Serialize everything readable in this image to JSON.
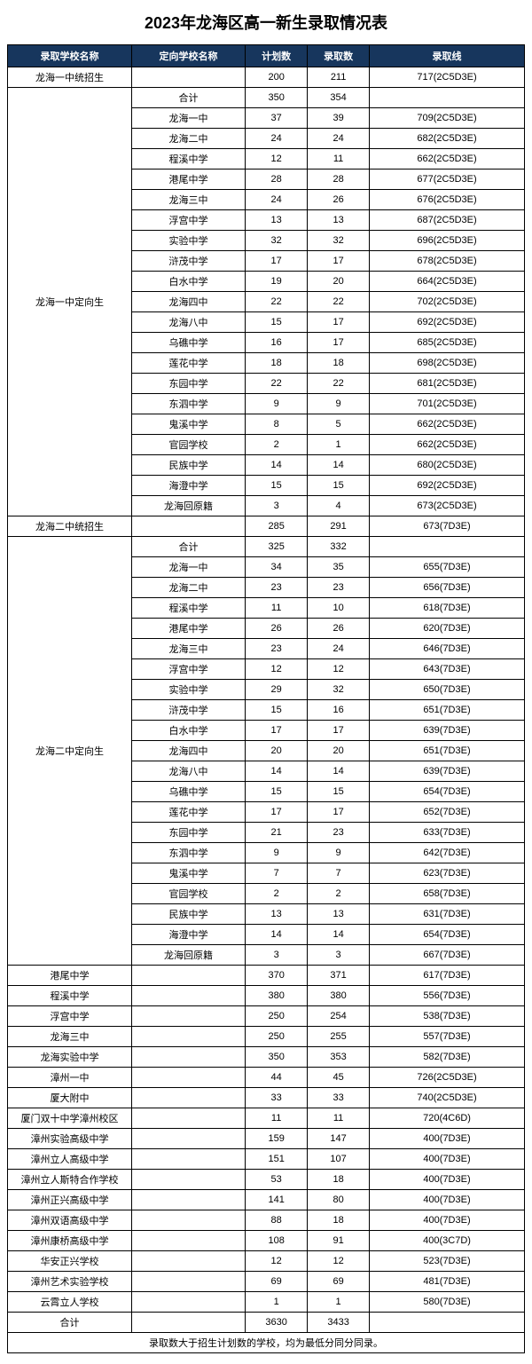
{
  "title": "2023年龙海区高一新生录取情况表",
  "headers": {
    "col1": "录取学校名称",
    "col2": "定向学校名称",
    "col3": "计划数",
    "col4": "录取数",
    "col5": "录取线"
  },
  "sections": [
    {
      "schoolName": "龙海一中统招生",
      "rowspan": 1,
      "rows": [
        {
          "target": "",
          "plan": "200",
          "admit": "211",
          "score": "717(2C5D3E)"
        }
      ]
    },
    {
      "schoolName": "龙海一中定向生",
      "rowspan": 21,
      "rows": [
        {
          "target": "合计",
          "plan": "350",
          "admit": "354",
          "score": ""
        },
        {
          "target": "龙海一中",
          "plan": "37",
          "admit": "39",
          "score": "709(2C5D3E)"
        },
        {
          "target": "龙海二中",
          "plan": "24",
          "admit": "24",
          "score": "682(2C5D3E)"
        },
        {
          "target": "程溪中学",
          "plan": "12",
          "admit": "11",
          "score": "662(2C5D3E)"
        },
        {
          "target": "港尾中学",
          "plan": "28",
          "admit": "28",
          "score": "677(2C5D3E)"
        },
        {
          "target": "龙海三中",
          "plan": "24",
          "admit": "26",
          "score": "676(2C5D3E)"
        },
        {
          "target": "浮宫中学",
          "plan": "13",
          "admit": "13",
          "score": "687(2C5D3E)"
        },
        {
          "target": "实验中学",
          "plan": "32",
          "admit": "32",
          "score": "696(2C5D3E)"
        },
        {
          "target": "浒茂中学",
          "plan": "17",
          "admit": "17",
          "score": "678(2C5D3E)"
        },
        {
          "target": "白水中学",
          "plan": "19",
          "admit": "20",
          "score": "664(2C5D3E)"
        },
        {
          "target": "龙海四中",
          "plan": "22",
          "admit": "22",
          "score": "702(2C5D3E)"
        },
        {
          "target": "龙海八中",
          "plan": "15",
          "admit": "17",
          "score": "692(2C5D3E)"
        },
        {
          "target": "乌礁中学",
          "plan": "16",
          "admit": "17",
          "score": "685(2C5D3E)"
        },
        {
          "target": "莲花中学",
          "plan": "18",
          "admit": "18",
          "score": "698(2C5D3E)"
        },
        {
          "target": "东园中学",
          "plan": "22",
          "admit": "22",
          "score": "681(2C5D3E)"
        },
        {
          "target": "东泗中学",
          "plan": "9",
          "admit": "9",
          "score": "701(2C5D3E)"
        },
        {
          "target": "鬼溪中学",
          "plan": "8",
          "admit": "5",
          "score": "662(2C5D3E)"
        },
        {
          "target": "官园学校",
          "plan": "2",
          "admit": "1",
          "score": "662(2C5D3E)"
        },
        {
          "target": "民族中学",
          "plan": "14",
          "admit": "14",
          "score": "680(2C5D3E)"
        },
        {
          "target": "海澄中学",
          "plan": "15",
          "admit": "15",
          "score": "692(2C5D3E)"
        },
        {
          "target": "龙海回原籍",
          "plan": "3",
          "admit": "4",
          "score": "673(2C5D3E)"
        }
      ]
    },
    {
      "schoolName": "龙海二中统招生",
      "rowspan": 1,
      "rows": [
        {
          "target": "",
          "plan": "285",
          "admit": "291",
          "score": "673(7D3E)"
        }
      ]
    },
    {
      "schoolName": "龙海二中定向生",
      "rowspan": 21,
      "rows": [
        {
          "target": "合计",
          "plan": "325",
          "admit": "332",
          "score": ""
        },
        {
          "target": "龙海一中",
          "plan": "34",
          "admit": "35",
          "score": "655(7D3E)"
        },
        {
          "target": "龙海二中",
          "plan": "23",
          "admit": "23",
          "score": "656(7D3E)"
        },
        {
          "target": "程溪中学",
          "plan": "11",
          "admit": "10",
          "score": "618(7D3E)"
        },
        {
          "target": "港尾中学",
          "plan": "26",
          "admit": "26",
          "score": "620(7D3E)"
        },
        {
          "target": "龙海三中",
          "plan": "23",
          "admit": "24",
          "score": "646(7D3E)"
        },
        {
          "target": "浮宫中学",
          "plan": "12",
          "admit": "12",
          "score": "643(7D3E)"
        },
        {
          "target": "实验中学",
          "plan": "29",
          "admit": "32",
          "score": "650(7D3E)"
        },
        {
          "target": "浒茂中学",
          "plan": "15",
          "admit": "16",
          "score": "651(7D3E)"
        },
        {
          "target": "白水中学",
          "plan": "17",
          "admit": "17",
          "score": "639(7D3E)"
        },
        {
          "target": "龙海四中",
          "plan": "20",
          "admit": "20",
          "score": "651(7D3E)"
        },
        {
          "target": "龙海八中",
          "plan": "14",
          "admit": "14",
          "score": "639(7D3E)"
        },
        {
          "target": "乌礁中学",
          "plan": "15",
          "admit": "15",
          "score": "654(7D3E)"
        },
        {
          "target": "莲花中学",
          "plan": "17",
          "admit": "17",
          "score": "652(7D3E)"
        },
        {
          "target": "东园中学",
          "plan": "21",
          "admit": "23",
          "score": "633(7D3E)"
        },
        {
          "target": "东泗中学",
          "plan": "9",
          "admit": "9",
          "score": "642(7D3E)"
        },
        {
          "target": "鬼溪中学",
          "plan": "7",
          "admit": "7",
          "score": "623(7D3E)"
        },
        {
          "target": "官园学校",
          "plan": "2",
          "admit": "2",
          "score": "658(7D3E)"
        },
        {
          "target": "民族中学",
          "plan": "13",
          "admit": "13",
          "score": "631(7D3E)"
        },
        {
          "target": "海澄中学",
          "plan": "14",
          "admit": "14",
          "score": "654(7D3E)"
        },
        {
          "target": "龙海回原籍",
          "plan": "3",
          "admit": "3",
          "score": "667(7D3E)"
        }
      ]
    },
    {
      "schoolName": "港尾中学",
      "rowspan": 1,
      "rows": [
        {
          "target": "",
          "plan": "370",
          "admit": "371",
          "score": "617(7D3E)"
        }
      ]
    },
    {
      "schoolName": "程溪中学",
      "rowspan": 1,
      "rows": [
        {
          "target": "",
          "plan": "380",
          "admit": "380",
          "score": "556(7D3E)"
        }
      ]
    },
    {
      "schoolName": "浮宫中学",
      "rowspan": 1,
      "rows": [
        {
          "target": "",
          "plan": "250",
          "admit": "254",
          "score": "538(7D3E)"
        }
      ]
    },
    {
      "schoolName": "龙海三中",
      "rowspan": 1,
      "rows": [
        {
          "target": "",
          "plan": "250",
          "admit": "255",
          "score": "557(7D3E)"
        }
      ]
    },
    {
      "schoolName": "龙海实验中学",
      "rowspan": 1,
      "rows": [
        {
          "target": "",
          "plan": "350",
          "admit": "353",
          "score": "582(7D3E)"
        }
      ]
    },
    {
      "schoolName": "漳州一中",
      "rowspan": 1,
      "rows": [
        {
          "target": "",
          "plan": "44",
          "admit": "45",
          "score": "726(2C5D3E)"
        }
      ]
    },
    {
      "schoolName": "厦大附中",
      "rowspan": 1,
      "rows": [
        {
          "target": "",
          "plan": "33",
          "admit": "33",
          "score": "740(2C5D3E)"
        }
      ]
    },
    {
      "schoolName": "厦门双十中学漳州校区",
      "rowspan": 1,
      "rows": [
        {
          "target": "",
          "plan": "11",
          "admit": "11",
          "score": "720(4C6D)"
        }
      ]
    },
    {
      "schoolName": "漳州实验高级中学",
      "rowspan": 1,
      "rows": [
        {
          "target": "",
          "plan": "159",
          "admit": "147",
          "score": "400(7D3E)"
        }
      ]
    },
    {
      "schoolName": "漳州立人高级中学",
      "rowspan": 1,
      "rows": [
        {
          "target": "",
          "plan": "151",
          "admit": "107",
          "score": "400(7D3E)"
        }
      ]
    },
    {
      "schoolName": "漳州立人斯特合作学校",
      "rowspan": 1,
      "rows": [
        {
          "target": "",
          "plan": "53",
          "admit": "18",
          "score": "400(7D3E)"
        }
      ]
    },
    {
      "schoolName": "漳州正兴高级中学",
      "rowspan": 1,
      "rows": [
        {
          "target": "",
          "plan": "141",
          "admit": "80",
          "score": "400(7D3E)"
        }
      ]
    },
    {
      "schoolName": "漳州双语高级中学",
      "rowspan": 1,
      "rows": [
        {
          "target": "",
          "plan": "88",
          "admit": "18",
          "score": "400(7D3E)"
        }
      ]
    },
    {
      "schoolName": "漳州康桥高级中学",
      "rowspan": 1,
      "rows": [
        {
          "target": "",
          "plan": "108",
          "admit": "91",
          "score": "400(3C7D)"
        }
      ]
    },
    {
      "schoolName": "华安正兴学校",
      "rowspan": 1,
      "rows": [
        {
          "target": "",
          "plan": "12",
          "admit": "12",
          "score": "523(7D3E)"
        }
      ]
    },
    {
      "schoolName": "漳州艺术实验学校",
      "rowspan": 1,
      "rows": [
        {
          "target": "",
          "plan": "69",
          "admit": "69",
          "score": "481(7D3E)"
        }
      ]
    },
    {
      "schoolName": "云霄立人学校",
      "rowspan": 1,
      "rows": [
        {
          "target": "",
          "plan": "1",
          "admit": "1",
          "score": "580(7D3E)"
        }
      ]
    },
    {
      "schoolName": "合计",
      "rowspan": 1,
      "rows": [
        {
          "target": "",
          "plan": "3630",
          "admit": "3433",
          "score": ""
        }
      ]
    }
  ],
  "footnote": "录取数大于招生计划数的学校，均为最低分同分同录。"
}
